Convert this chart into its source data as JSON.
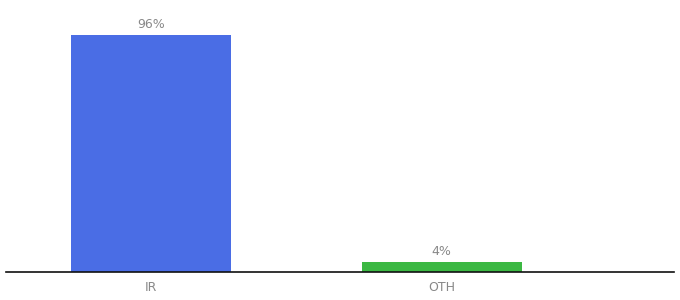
{
  "categories": [
    "IR",
    "OTH"
  ],
  "values": [
    96,
    4
  ],
  "bar_colors": [
    "#4a6de5",
    "#3cb843"
  ],
  "labels": [
    "96%",
    "4%"
  ],
  "background_color": "#ffffff",
  "text_color": "#888888",
  "ylim": [
    0,
    108
  ],
  "bar_width": 0.55,
  "label_fontsize": 9,
  "tick_fontsize": 9,
  "x_positions": [
    1,
    2
  ],
  "xlim": [
    0.5,
    2.8
  ]
}
